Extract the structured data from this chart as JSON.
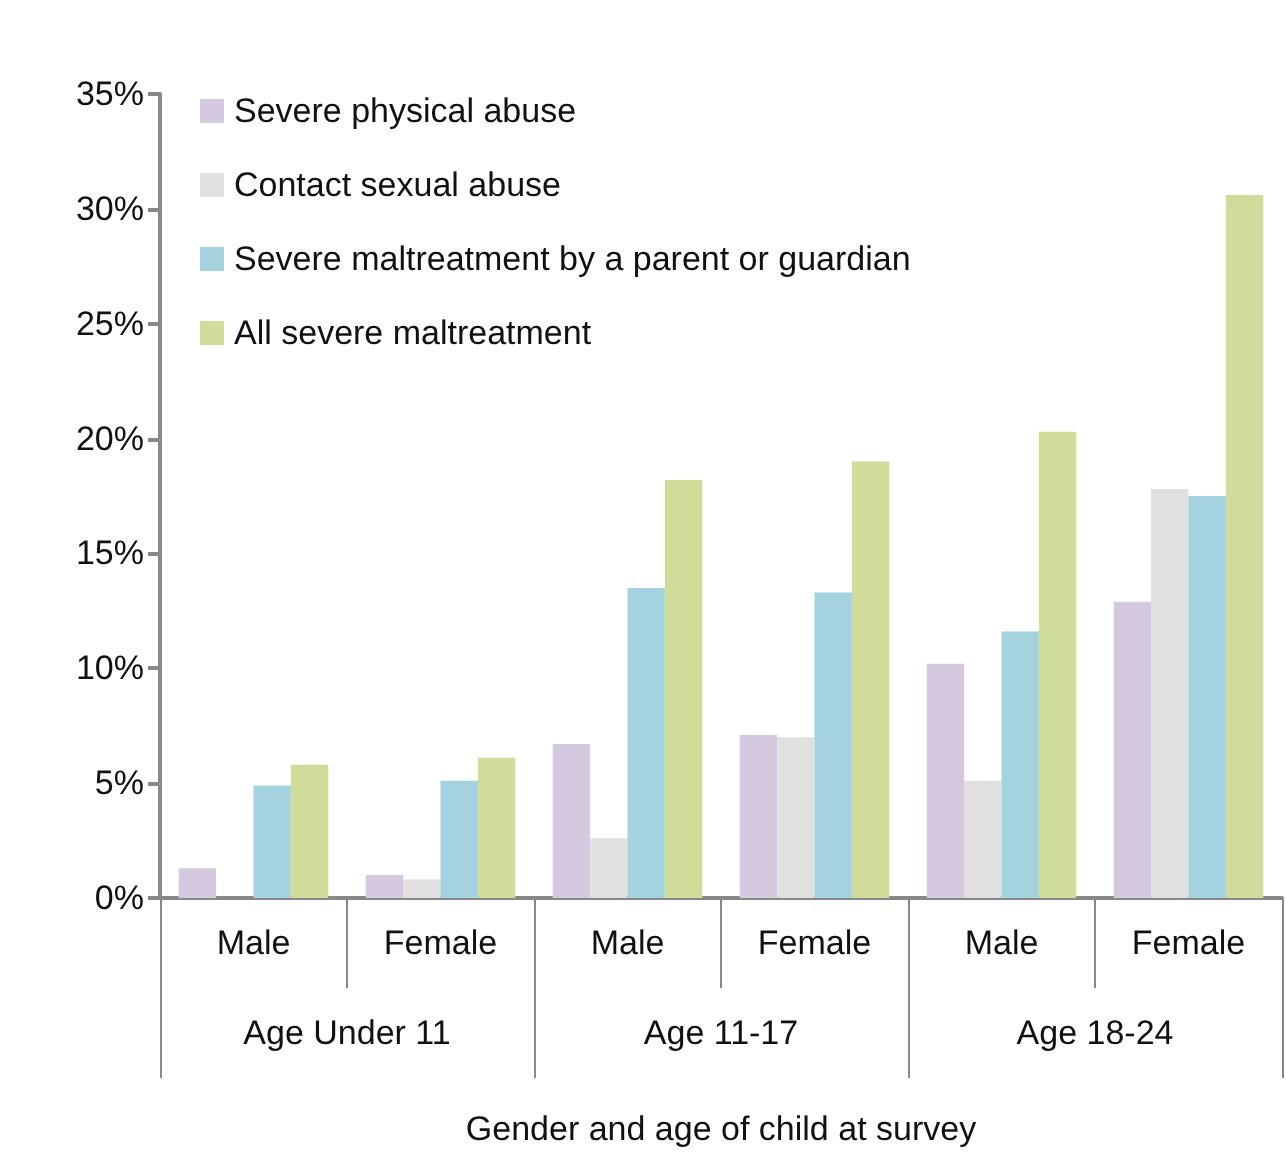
{
  "chart_data": {
    "type": "bar",
    "xlabel": "Gender and age of child at survey",
    "categories": [
      "Male",
      "Female",
      "Male",
      "Female",
      "Male",
      "Female"
    ],
    "annotations": [
      "Age Under 11",
      "Age 11-17",
      "Age 18-24"
    ],
    "series": [
      {
        "name": "Severe physical abuse",
        "color": "#d5c9e0",
        "values": [
          1.3,
          1.0,
          6.7,
          7.1,
          10.2,
          12.9
        ]
      },
      {
        "name": "Contact sexual abuse",
        "color": "#e0e0e0",
        "values": [
          null,
          0.8,
          2.6,
          7.0,
          5.1,
          17.8
        ]
      },
      {
        "name": "Severe maltreatment by a parent or guardian",
        "color": "#a5d2df",
        "values": [
          4.9,
          5.1,
          13.5,
          13.3,
          11.6,
          17.5
        ]
      },
      {
        "name": "All severe maltreatment",
        "color": "#d0dc9a",
        "values": [
          5.8,
          6.1,
          18.2,
          19.0,
          20.3,
          30.6
        ]
      }
    ],
    "ylim": [
      0,
      35
    ],
    "yticks": [
      {
        "value": 0,
        "label": "0%"
      },
      {
        "value": 5,
        "label": "5%"
      },
      {
        "value": 10,
        "label": "10%"
      },
      {
        "value": 15,
        "label": "15%"
      },
      {
        "value": 20,
        "label": "20%"
      },
      {
        "value": 25,
        "label": "25%"
      },
      {
        "value": 30,
        "label": "30%"
      },
      {
        "value": 35,
        "label": "35%"
      }
    ],
    "grid": false,
    "legend": "top left"
  }
}
